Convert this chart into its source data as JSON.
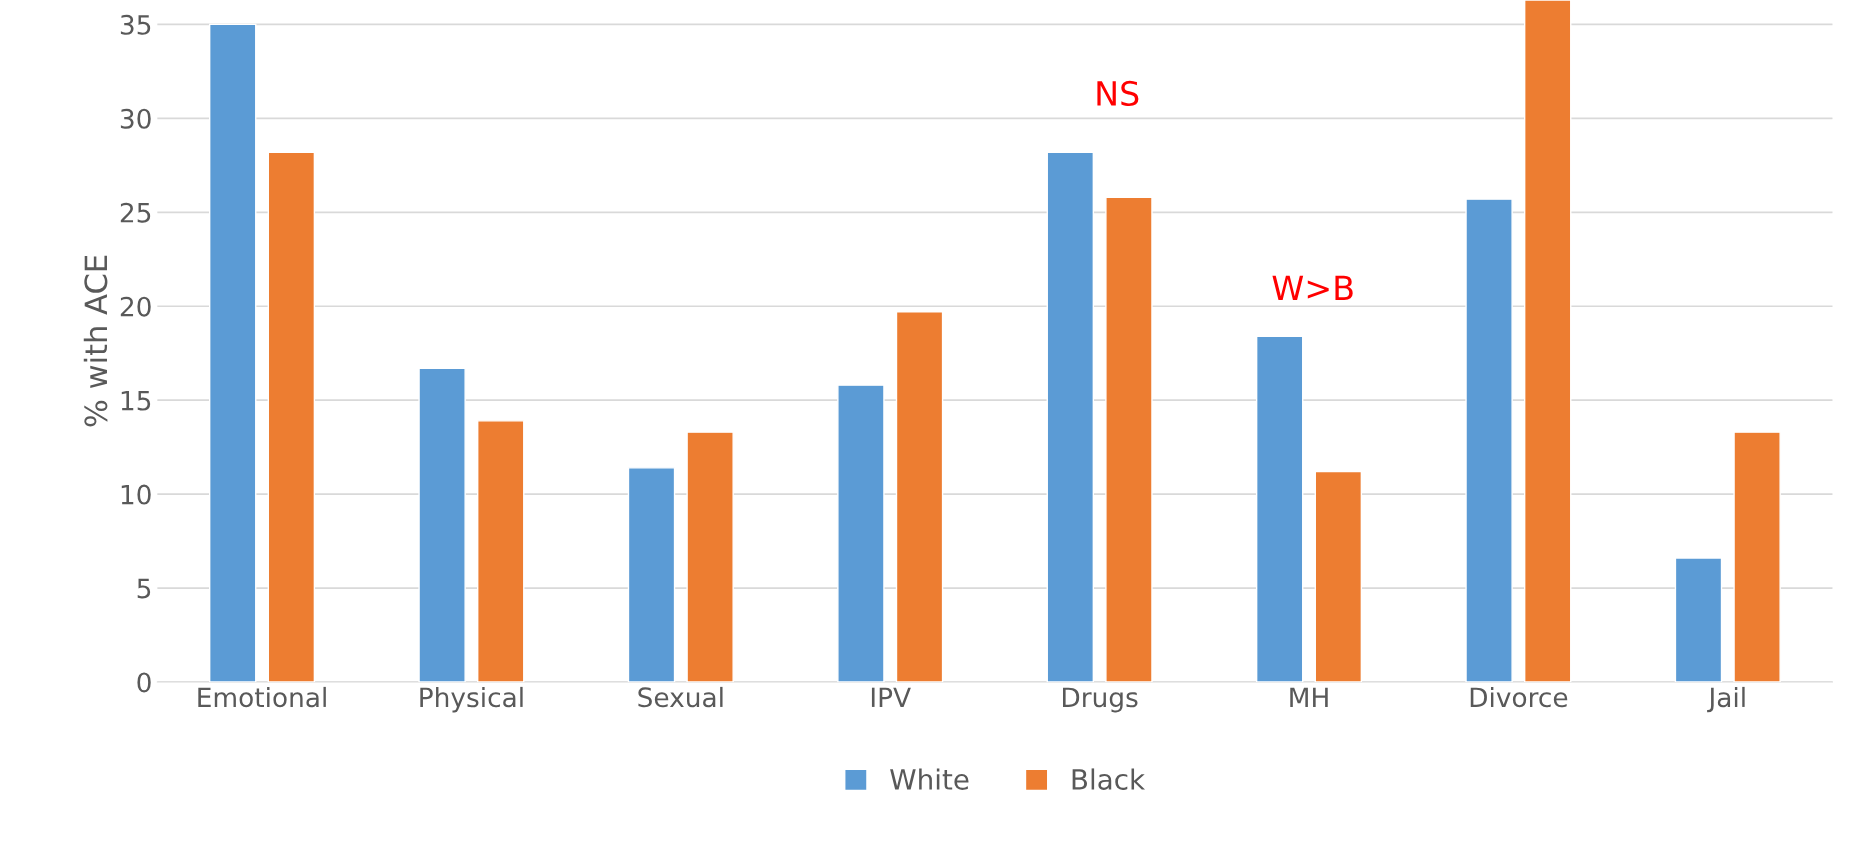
{
  "chart_data": {
    "type": "bar",
    "ylabel": "% with ACE",
    "categories": [
      "Emotional",
      "Physical",
      "Sexual",
      "IPV",
      "Drugs",
      "MH",
      "Divorce",
      "Jail"
    ],
    "series": [
      {
        "name": "White",
        "color": "#5b9bd5",
        "values": [
          35.0,
          16.7,
          11.4,
          15.8,
          28.2,
          18.4,
          25.7,
          6.6
        ]
      },
      {
        "name": "Black",
        "color": "#ed7d31",
        "values": [
          28.2,
          13.9,
          13.3,
          19.7,
          25.8,
          11.2,
          36.3,
          13.3
        ]
      }
    ],
    "ylim": [
      0,
      36.3
    ],
    "yticks": [
      0,
      5,
      10,
      15,
      20,
      25,
      30,
      35
    ],
    "grid": "y",
    "legend": "bottom",
    "annotations": [
      "NS",
      "W>B"
    ]
  }
}
